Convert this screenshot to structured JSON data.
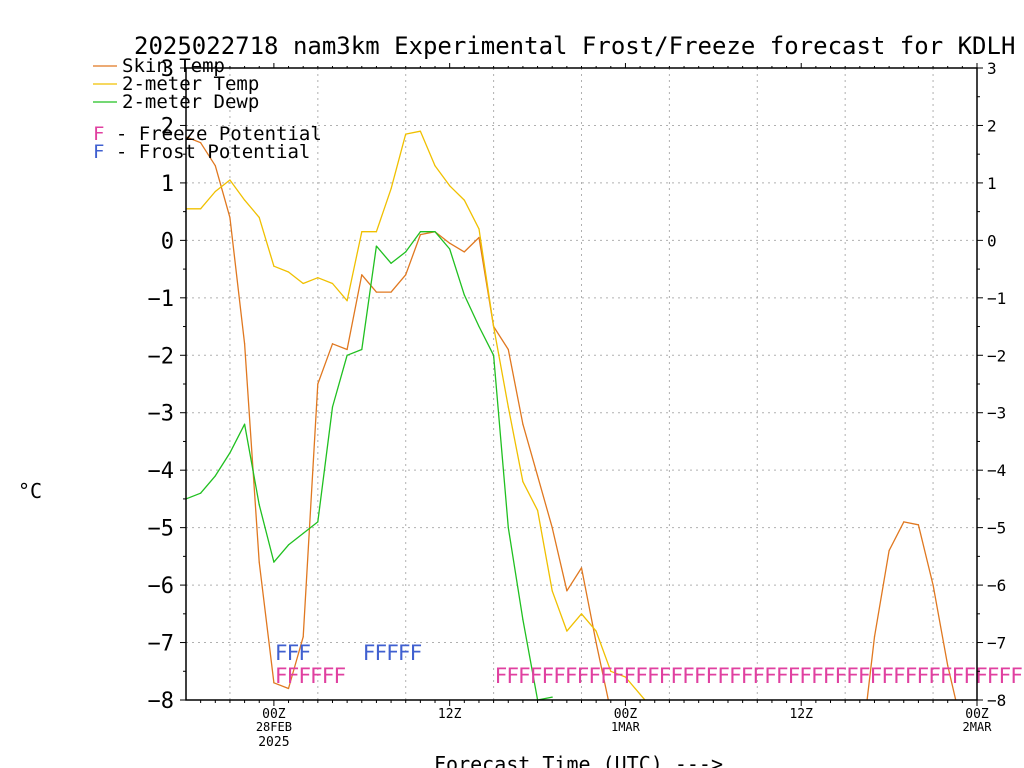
{
  "chart_data": {
    "type": "line",
    "title": "2025022718 nam3km Experimental Frost/Freeze forecast for KDLH",
    "xlabel": "Forecast Time (UTC) --->",
    "ylabel": "°C",
    "ylim": [
      -8,
      3
    ],
    "yticks": [
      3,
      2,
      1,
      0,
      -1,
      -2,
      -3,
      -4,
      -5,
      -6,
      -7,
      -8
    ],
    "yticks_right": [
      "3",
      "2",
      "1",
      "0",
      "−1",
      "−2",
      "−3",
      "−4",
      "−5",
      "−6",
      "−7",
      "−8"
    ],
    "yticks_left": [
      "3",
      "2",
      "1",
      "0",
      "−1",
      "−2",
      "−3",
      "−4",
      "−5",
      "−6",
      "−7",
      "−8"
    ],
    "x_range_hours": [
      -6,
      48
    ],
    "x_ticks": [
      {
        "h": 0,
        "label": "00Z",
        "sub": "28FEB",
        "sub2": "2025"
      },
      {
        "h": 12,
        "label": "12Z",
        "sub": "",
        "sub2": ""
      },
      {
        "h": 24,
        "label": "00Z",
        "sub": "1MAR",
        "sub2": ""
      },
      {
        "h": 36,
        "label": "12Z",
        "sub": "",
        "sub2": ""
      },
      {
        "h": 48,
        "label": "00Z",
        "sub": "2MAR",
        "sub2": ""
      }
    ],
    "grid": true,
    "legend": [
      {
        "text": "Skin Temp",
        "color": "#e07820",
        "kind": "line"
      },
      {
        "text": "2-meter Temp",
        "color": "#f0c000",
        "kind": "line"
      },
      {
        "text": "2-meter Dewp",
        "color": "#20c020",
        "kind": "line"
      },
      {
        "text": "F - Freeze Potential",
        "color": "#e040a0",
        "kind": "F"
      },
      {
        "text": "F - Frost Potential",
        "color": "#4060d0",
        "kind": "F"
      }
    ],
    "series": [
      {
        "name": "Skin Temp",
        "color": "#e07820",
        "x": [
          -6,
          -5,
          -4,
          -3,
          -2,
          -1,
          0,
          1,
          2,
          3,
          4,
          5,
          6,
          7,
          8,
          9,
          10,
          11,
          12,
          13,
          14,
          15,
          16,
          17,
          18,
          19,
          20,
          21,
          22,
          23,
          24,
          25,
          26
        ],
        "y": [
          1.8,
          1.7,
          1.3,
          0.4,
          -1.8,
          -5.6,
          -7.7,
          -7.8,
          -6.9,
          -2.5,
          -1.8,
          -1.9,
          -0.6,
          -0.9,
          -0.9,
          -0.6,
          0.1,
          0.15,
          -0.05,
          -0.2,
          0.05,
          -1.5,
          -1.9,
          -3.2,
          -4.1,
          -5.0,
          -6.1,
          -5.7,
          -7.0,
          -8.2,
          -8.6,
          -8.6,
          -8.6
        ]
      },
      {
        "name": "2-meter Temp",
        "color": "#f0c000",
        "x": [
          -6,
          -5,
          -4,
          -3,
          -2,
          -1,
          0,
          1,
          2,
          3,
          4,
          5,
          6,
          7,
          8,
          9,
          10,
          11,
          12,
          13,
          14,
          15,
          16,
          17,
          18,
          19,
          20,
          21,
          22,
          23,
          24,
          25,
          26
        ],
        "y": [
          0.55,
          0.55,
          0.85,
          1.05,
          0.7,
          0.4,
          -0.45,
          -0.55,
          -0.75,
          -0.65,
          -0.75,
          -1.05,
          0.15,
          0.15,
          0.9,
          1.85,
          1.9,
          1.3,
          0.95,
          0.7,
          0.2,
          -1.5,
          -2.9,
          -4.2,
          -4.7,
          -6.1,
          -6.8,
          -6.5,
          -6.8,
          -7.5,
          -7.6,
          -7.9,
          -8.2
        ]
      },
      {
        "name": "2-meter Dewp",
        "color": "#20c020",
        "x": [
          -6,
          -5,
          -4,
          -3,
          -2,
          -1,
          0,
          1,
          2,
          3,
          4,
          5,
          6,
          7,
          8,
          9,
          10,
          11,
          12,
          13,
          14,
          15,
          16,
          17,
          18,
          19
        ],
        "y": [
          -4.5,
          -4.4,
          -4.1,
          -3.7,
          -3.2,
          -4.6,
          -5.6,
          -5.3,
          -5.1,
          -4.9,
          -2.9,
          -2.0,
          -1.9,
          -0.1,
          -0.4,
          -0.2,
          0.15,
          0.15,
          -0.15,
          -0.95,
          -1.5,
          -2.0,
          -5.0,
          -6.6,
          -8.0,
          -7.95
        ]
      },
      {
        "name": "Skin Temp (late)",
        "color": "#e07820",
        "x": [
          40,
          40.5,
          41,
          42,
          43,
          44,
          45,
          46,
          47
        ],
        "y": [
          -9.5,
          -8.0,
          -6.9,
          -5.4,
          -4.9,
          -4.95,
          -6.0,
          -7.4,
          -8.5
        ]
      }
    ],
    "freeze_marks": {
      "color": "#e040a0",
      "y": -7.55,
      "text": "F",
      "hours": [
        0.5,
        1.3,
        2.1,
        2.9,
        3.7,
        4.5,
        15.5,
        16.3,
        17.1,
        17.9,
        18.7,
        19.5,
        20.3,
        21.1,
        21.9,
        22.7,
        23.5,
        24.3,
        25.1,
        25.9,
        26.7,
        27.5,
        28.3,
        29.1,
        29.9,
        30.7,
        31.5,
        32.3,
        33.1,
        33.9,
        34.7,
        35.5,
        36.3,
        37.1,
        37.9,
        38.7,
        39.5,
        40.3,
        41.1,
        41.9,
        42.7,
        43.5,
        44.3,
        45.1,
        45.9,
        46.7,
        47.5,
        48.3,
        49.1,
        49.9,
        50.7,
        51.5,
        52.3,
        53.1
      ]
    },
    "frost_marks": {
      "color": "#4060d0",
      "y": -7.15,
      "text": "F",
      "hours": [
        0.5,
        1.3,
        2.1,
        6.5,
        7.3,
        8.1,
        8.9,
        9.7
      ]
    }
  }
}
